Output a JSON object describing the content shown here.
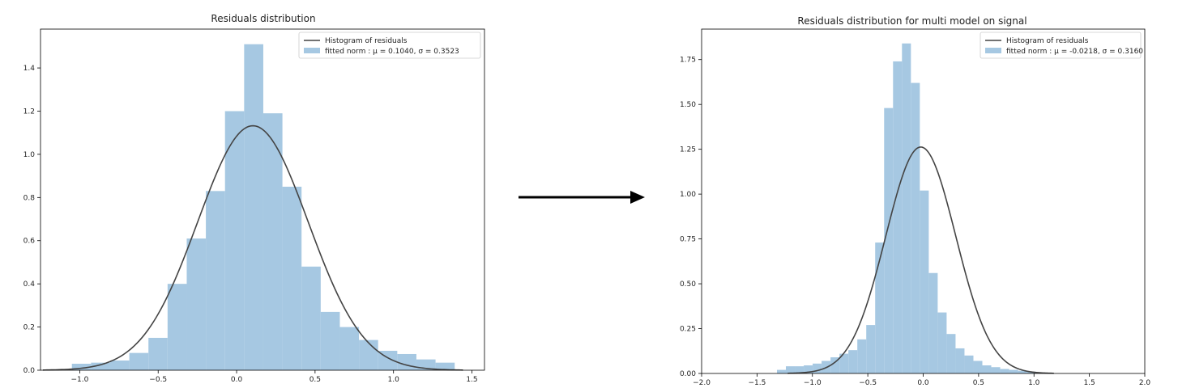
{
  "arrow": {
    "color": "#000000"
  },
  "chart_data": [
    {
      "type": "bar",
      "title": "Residuals distribution",
      "xlabel": "",
      "ylabel": "",
      "xlim": [
        -1.25,
        1.58
      ],
      "ylim": [
        0,
        1.58
      ],
      "xticks": [
        -1.0,
        -0.5,
        0.0,
        0.5,
        1.0,
        1.5
      ],
      "xtick_labels": [
        "−1.0",
        "−0.5",
        "0.0",
        "0.5",
        "1.0",
        "1.5"
      ],
      "yticks": [
        0.0,
        0.2,
        0.4,
        0.6,
        0.8,
        1.0,
        1.2,
        1.4
      ],
      "ytick_labels": [
        "0.0",
        "0.2",
        "0.4",
        "0.6",
        "0.8",
        "1.0",
        "1.2",
        "1.4"
      ],
      "legend": {
        "placement": "top-right",
        "entries": [
          "Histogram of residuals",
          "fitted norm : μ =  0.1040, σ =  0.3523"
        ]
      },
      "line_color": "#444444",
      "bar_color": "#a6c8e2",
      "normal_fit": {
        "mu": 0.104,
        "sigma": 0.3523
      },
      "bin_start": -1.05,
      "bin_width": 0.122,
      "values": [
        0.03,
        0.035,
        0.045,
        0.08,
        0.15,
        0.4,
        0.61,
        0.83,
        1.2,
        1.51,
        1.19,
        0.85,
        0.48,
        0.27,
        0.2,
        0.14,
        0.09,
        0.075,
        0.05,
        0.035
      ]
    },
    {
      "type": "bar",
      "title": "Residuals distribution for multi model on signal",
      "xlabel": "",
      "ylabel": "",
      "xlim": [
        -2.0,
        2.0
      ],
      "ylim": [
        0,
        1.92
      ],
      "xticks": [
        -2.0,
        -1.5,
        -1.0,
        -0.5,
        0.0,
        0.5,
        1.0,
        1.5,
        2.0
      ],
      "xtick_labels": [
        "−2.0",
        "−1.5",
        "−1.0",
        "−0.5",
        "0.0",
        "0.5",
        "1.0",
        "1.5",
        "2.0"
      ],
      "yticks": [
        0.0,
        0.25,
        0.5,
        0.75,
        1.0,
        1.25,
        1.5,
        1.75
      ],
      "ytick_labels": [
        "0.00",
        "0.25",
        "0.50",
        "0.75",
        "1.00",
        "1.25",
        "1.50",
        "1.75"
      ],
      "legend": {
        "placement": "top-right",
        "entries": [
          "Histogram of residuals",
          "fitted norm : μ =  -0.0218, σ =  0.3160"
        ]
      },
      "line_color": "#444444",
      "bar_color": "#a6c8e2",
      "normal_fit": {
        "mu": -0.0218,
        "sigma": 0.316
      },
      "bin_start": -1.32,
      "bin_width": 0.0806,
      "values": [
        0.02,
        0.04,
        0.04,
        0.045,
        0.055,
        0.07,
        0.09,
        0.11,
        0.13,
        0.19,
        0.27,
        0.73,
        1.48,
        1.74,
        1.84,
        1.62,
        1.02,
        0.56,
        0.34,
        0.22,
        0.14,
        0.1,
        0.07,
        0.045,
        0.035,
        0.025,
        0.02,
        0.015,
        0.01
      ]
    }
  ]
}
